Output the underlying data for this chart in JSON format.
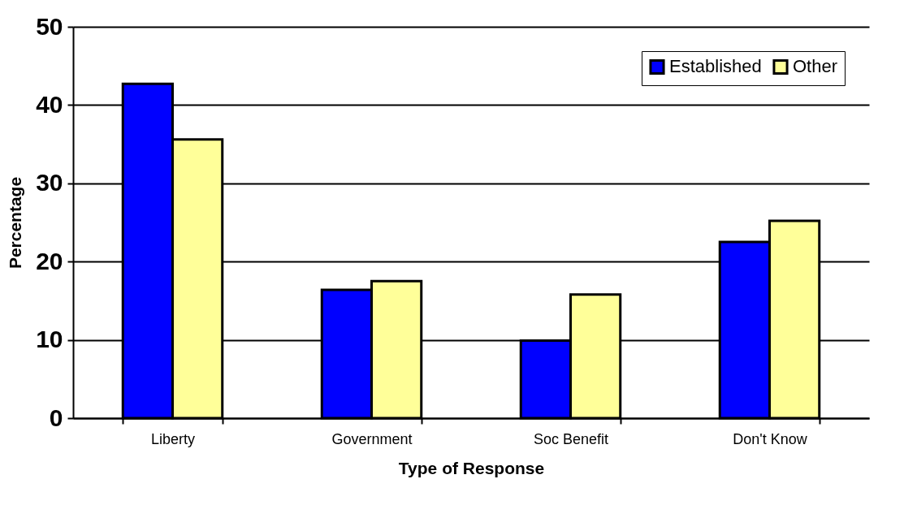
{
  "chart_data": {
    "type": "bar",
    "xlabel": "Type of Response",
    "ylabel": "Percentage",
    "categories": [
      "Liberty",
      "Government",
      "Soc Benefit",
      "Don't Know"
    ],
    "series": [
      {
        "name": "Established",
        "color": "#0000ff",
        "values": [
          42.7,
          16.4,
          9.9,
          22.5
        ]
      },
      {
        "name": "Other",
        "color": "#ffff99",
        "values": [
          35.6,
          17.5,
          15.8,
          25.2
        ]
      }
    ],
    "ylim": [
      0,
      50
    ],
    "yticks": [
      0,
      10,
      20,
      30,
      40,
      50
    ],
    "grid": "y",
    "legend": "top right"
  }
}
